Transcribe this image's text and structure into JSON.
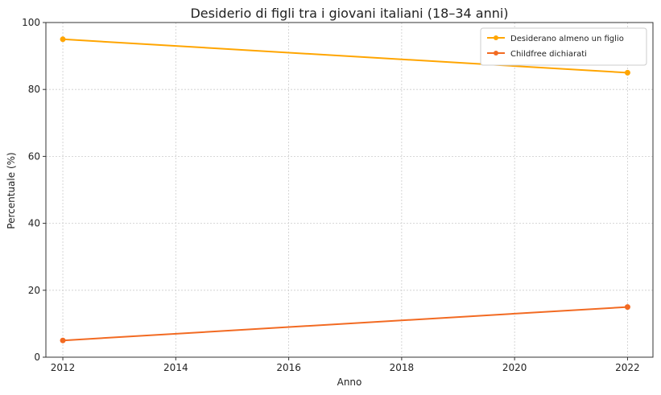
{
  "chart_data": {
    "type": "line",
    "title": "Desiderio di figli tra i giovani italiani (18–34 anni)",
    "xlabel": "Anno",
    "ylabel": "Percentuale (%)",
    "xlim": [
      2011.7,
      2022.45
    ],
    "ylim": [
      0,
      100
    ],
    "xticks": [
      2012,
      2014,
      2016,
      2018,
      2020,
      2022
    ],
    "yticks": [
      0,
      20,
      40,
      60,
      80,
      100
    ],
    "grid": true,
    "legend_position": "top-right",
    "series": [
      {
        "name": "Desiderano almeno un figlio",
        "color": "#FFA500",
        "x": [
          2012,
          2022
        ],
        "y": [
          95,
          85
        ]
      },
      {
        "name": "Childfree dichiarati",
        "color": "#F26A22",
        "x": [
          2012,
          2022
        ],
        "y": [
          5,
          15
        ]
      }
    ]
  }
}
